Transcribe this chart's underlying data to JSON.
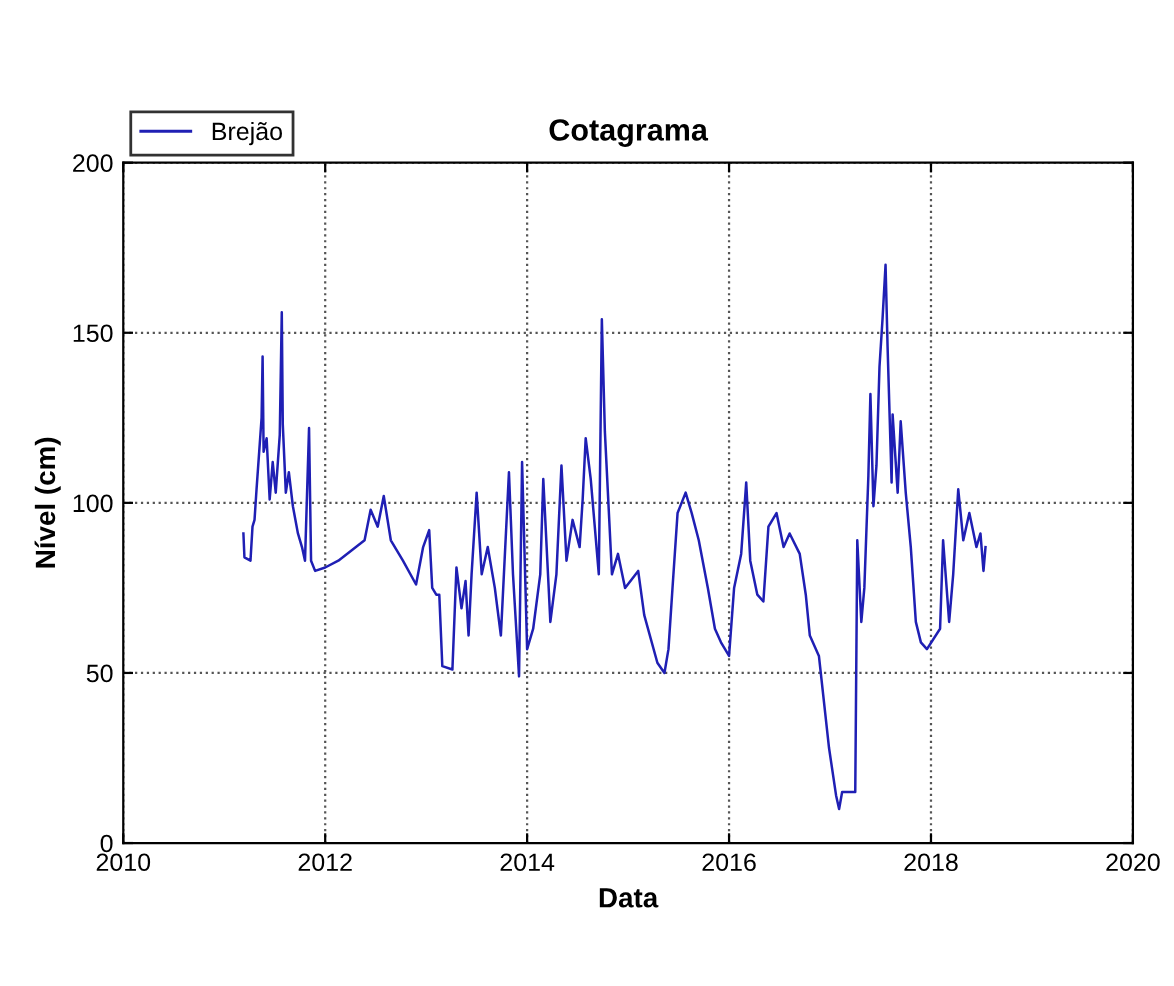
{
  "chart_data": {
    "type": "line",
    "title": "Cotagrama",
    "xlabel": "Data",
    "ylabel": "Nível (cm)",
    "xlim": [
      2010,
      2020
    ],
    "xticks": [
      2010,
      2012,
      2014,
      2016,
      2018,
      2020
    ],
    "ylim": [
      0,
      200
    ],
    "yticks": [
      0,
      50,
      100,
      150,
      200
    ],
    "grid": true,
    "legend": "top left",
    "line_style": "solid",
    "series": [
      {
        "name": "Brejão",
        "color": "#1f1fb4",
        "x": [
          2011.19,
          2011.2,
          2011.26,
          2011.28,
          2011.3,
          2011.32,
          2011.37,
          2011.38,
          2011.39,
          2011.42,
          2011.45,
          2011.48,
          2011.51,
          2011.55,
          2011.57,
          2011.58,
          2011.61,
          2011.64,
          2011.68,
          2011.73,
          2011.77,
          2011.8,
          2011.84,
          2011.86,
          2011.9,
          2012.0,
          2012.13,
          2012.26,
          2012.39,
          2012.45,
          2012.52,
          2012.58,
          2012.65,
          2012.77,
          2012.9,
          2012.97,
          2013.03,
          2013.06,
          2013.1,
          2013.13,
          2013.16,
          2013.26,
          2013.3,
          2013.35,
          2013.39,
          2013.42,
          2013.45,
          2013.5,
          2013.55,
          2013.61,
          2013.68,
          2013.74,
          2013.82,
          2013.86,
          2013.92,
          2013.95,
          2014.0,
          2014.06,
          2014.13,
          2014.16,
          2014.23,
          2014.29,
          2014.34,
          2014.39,
          2014.45,
          2014.52,
          2014.55,
          2014.58,
          2014.63,
          2014.71,
          2014.74,
          2014.77,
          2014.84,
          2014.9,
          2014.97,
          2015.1,
          2015.16,
          2015.29,
          2015.36,
          2015.4,
          2015.44,
          2015.49,
          2015.57,
          2015.63,
          2015.7,
          2015.79,
          2015.86,
          2015.92,
          2016.0,
          2016.05,
          2016.12,
          2016.17,
          2016.21,
          2016.28,
          2016.34,
          2016.39,
          2016.47,
          2016.54,
          2016.6,
          2016.7,
          2016.76,
          2016.8,
          2016.89,
          2016.99,
          2017.06,
          2017.09,
          2017.12,
          2017.25,
          2017.27,
          2017.31,
          2017.34,
          2017.38,
          2017.4,
          2017.43,
          2017.46,
          2017.49,
          2017.52,
          2017.55,
          2017.57,
          2017.61,
          2017.62,
          2017.67,
          2017.7,
          2017.75,
          2017.8,
          2017.85,
          2017.9,
          2017.96,
          2018.09,
          2018.12,
          2018.18,
          2018.22,
          2018.27,
          2018.32,
          2018.38,
          2018.45,
          2018.49,
          2018.52,
          2018.54
        ],
        "values": [
          91,
          84,
          83,
          93,
          95,
          104,
          125,
          143,
          115,
          119,
          101,
          112,
          103,
          120,
          156,
          123,
          103,
          109,
          99,
          91,
          87,
          83,
          122,
          83,
          80,
          81,
          83,
          86,
          89,
          98,
          93,
          102,
          89,
          83,
          76,
          87,
          92,
          75,
          73,
          73,
          52,
          51,
          81,
          69,
          77,
          61,
          79,
          103,
          79,
          87,
          75,
          61,
          109,
          79,
          49,
          112,
          57,
          63,
          79,
          107,
          65,
          79,
          111,
          83,
          95,
          87,
          101,
          119,
          107,
          79,
          154,
          121,
          79,
          85,
          75,
          80,
          67,
          53,
          50,
          57,
          75,
          97,
          103,
          97,
          89,
          75,
          63,
          59,
          55,
          75,
          85,
          106,
          83,
          73,
          71,
          93,
          97,
          87,
          91,
          85,
          73,
          61,
          55,
          28,
          14,
          10,
          15,
          15,
          89,
          65,
          75,
          108,
          132,
          99,
          111,
          140,
          154,
          170,
          146,
          106,
          126,
          103,
          124,
          103,
          87,
          65,
          59,
          57,
          63,
          89,
          65,
          79,
          104,
          89,
          97,
          87,
          91,
          80,
          87
        ]
      }
    ]
  }
}
